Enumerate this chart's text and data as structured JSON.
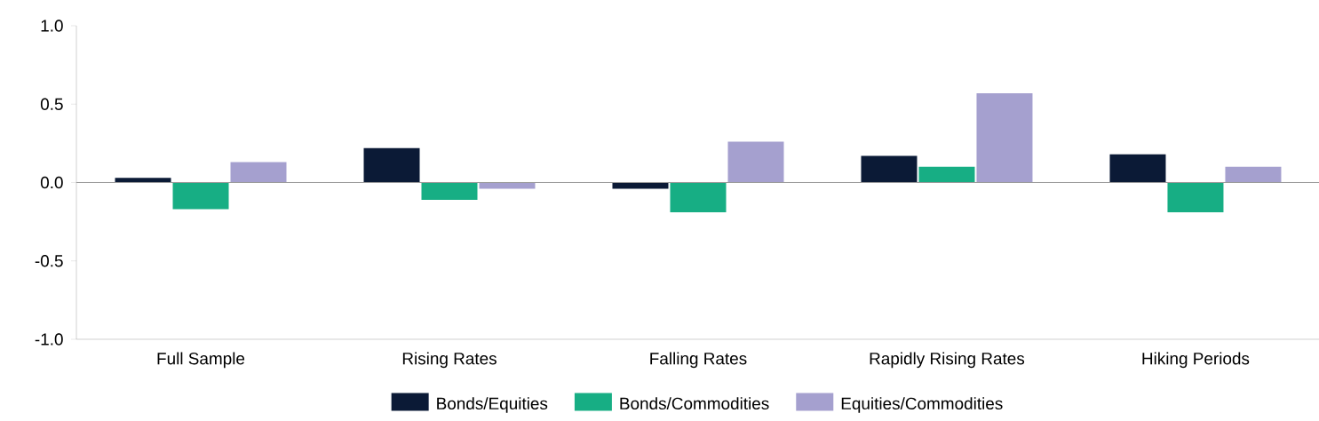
{
  "chart_data": {
    "type": "bar",
    "categories": [
      "Full Sample",
      "Rising Rates",
      "Falling Rates",
      "Rapidly Rising Rates",
      "Hiking Periods"
    ],
    "series": [
      {
        "name": "Bonds/Equities",
        "color": "#0b1a36",
        "values": [
          0.03,
          0.22,
          -0.04,
          0.17,
          0.18
        ]
      },
      {
        "name": "Bonds/Commodities",
        "color": "#17ae84",
        "values": [
          -0.17,
          -0.11,
          -0.19,
          0.1,
          -0.19
        ]
      },
      {
        "name": "Equities/Commodities",
        "color": "#a5a0cf",
        "values": [
          0.13,
          -0.04,
          0.26,
          0.57,
          0.1
        ]
      }
    ],
    "ylim": [
      -1,
      1
    ],
    "yticks": [
      {
        "value": -1,
        "label": "-1.0"
      },
      {
        "value": -0.5,
        "label": "-0.5"
      },
      {
        "value": 0,
        "label": "0.0"
      },
      {
        "value": 0.5,
        "label": "0.5"
      },
      {
        "value": 1,
        "label": "1.0"
      }
    ],
    "ref_lines": [
      {
        "axis": "y",
        "value": 0,
        "color": "#9a9a9a"
      }
    ],
    "legend": "bottom",
    "grid": false
  }
}
